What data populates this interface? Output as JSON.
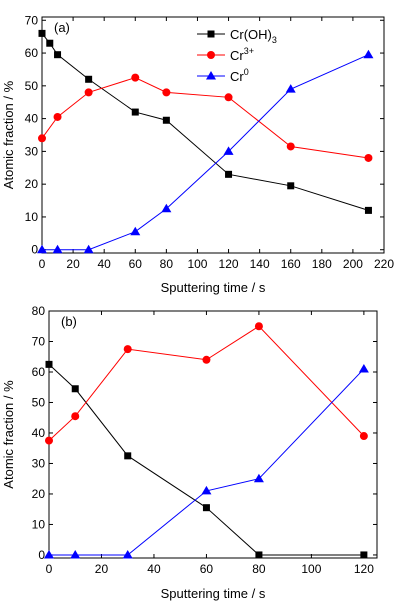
{
  "chart_data": [
    {
      "type": "line",
      "panel_label": "(a)",
      "xlabel": "Sputtering time / s",
      "ylabel": "Atomic fraction / %",
      "xlim": [
        0,
        220
      ],
      "ylim": [
        -1,
        71
      ],
      "xticks": [
        0,
        20,
        40,
        60,
        80,
        100,
        120,
        140,
        160,
        180,
        200,
        220
      ],
      "yticks": [
        0,
        10,
        20,
        30,
        40,
        50,
        60,
        70
      ],
      "legend": "top-right",
      "grid": false,
      "series": [
        {
          "name": "Cr(OH)",
          "name_sub": "3",
          "marker": "square",
          "color": "#000000",
          "x": [
            0,
            5,
            10,
            30,
            60,
            80,
            120,
            160,
            210
          ],
          "y": [
            66,
            63,
            59.5,
            52,
            42,
            39.5,
            23,
            19.5,
            12
          ]
        },
        {
          "name": "Cr",
          "name_sup": "3+",
          "marker": "circle",
          "color": "#ff0000",
          "x": [
            0,
            10,
            30,
            60,
            80,
            120,
            160,
            210
          ],
          "y": [
            34,
            40.5,
            48,
            52.5,
            48,
            46.5,
            31.5,
            28
          ]
        },
        {
          "name": "Cr",
          "name_sup": "0",
          "marker": "triangle",
          "color": "#0000ff",
          "x": [
            0,
            10,
            30,
            60,
            80,
            120,
            160,
            210
          ],
          "y": [
            0,
            0,
            0,
            5.5,
            12.5,
            30,
            49,
            59.5
          ]
        }
      ]
    },
    {
      "type": "line",
      "panel_label": "(b)",
      "xlabel": "Sputtering time / s",
      "ylabel": "Atomic fraction / %",
      "xlim": [
        0,
        125
      ],
      "ylim": [
        -1,
        80
      ],
      "xticks": [
        0,
        20,
        40,
        60,
        80,
        100,
        120
      ],
      "yticks": [
        0,
        10,
        20,
        30,
        40,
        50,
        60,
        70,
        80
      ],
      "grid": false,
      "series": [
        {
          "marker": "square",
          "color": "#000000",
          "x": [
            0,
            10,
            30,
            60,
            80,
            120
          ],
          "y": [
            62.5,
            54.5,
            32.5,
            15.5,
            0,
            0
          ]
        },
        {
          "marker": "circle",
          "color": "#ff0000",
          "x": [
            0,
            10,
            30,
            60,
            80,
            120
          ],
          "y": [
            37.5,
            45.5,
            67.5,
            64,
            75,
            39
          ]
        },
        {
          "marker": "triangle",
          "color": "#0000ff",
          "x": [
            0,
            10,
            30,
            60,
            80,
            120
          ],
          "y": [
            0,
            0,
            0,
            21,
            25,
            61
          ]
        }
      ]
    }
  ]
}
